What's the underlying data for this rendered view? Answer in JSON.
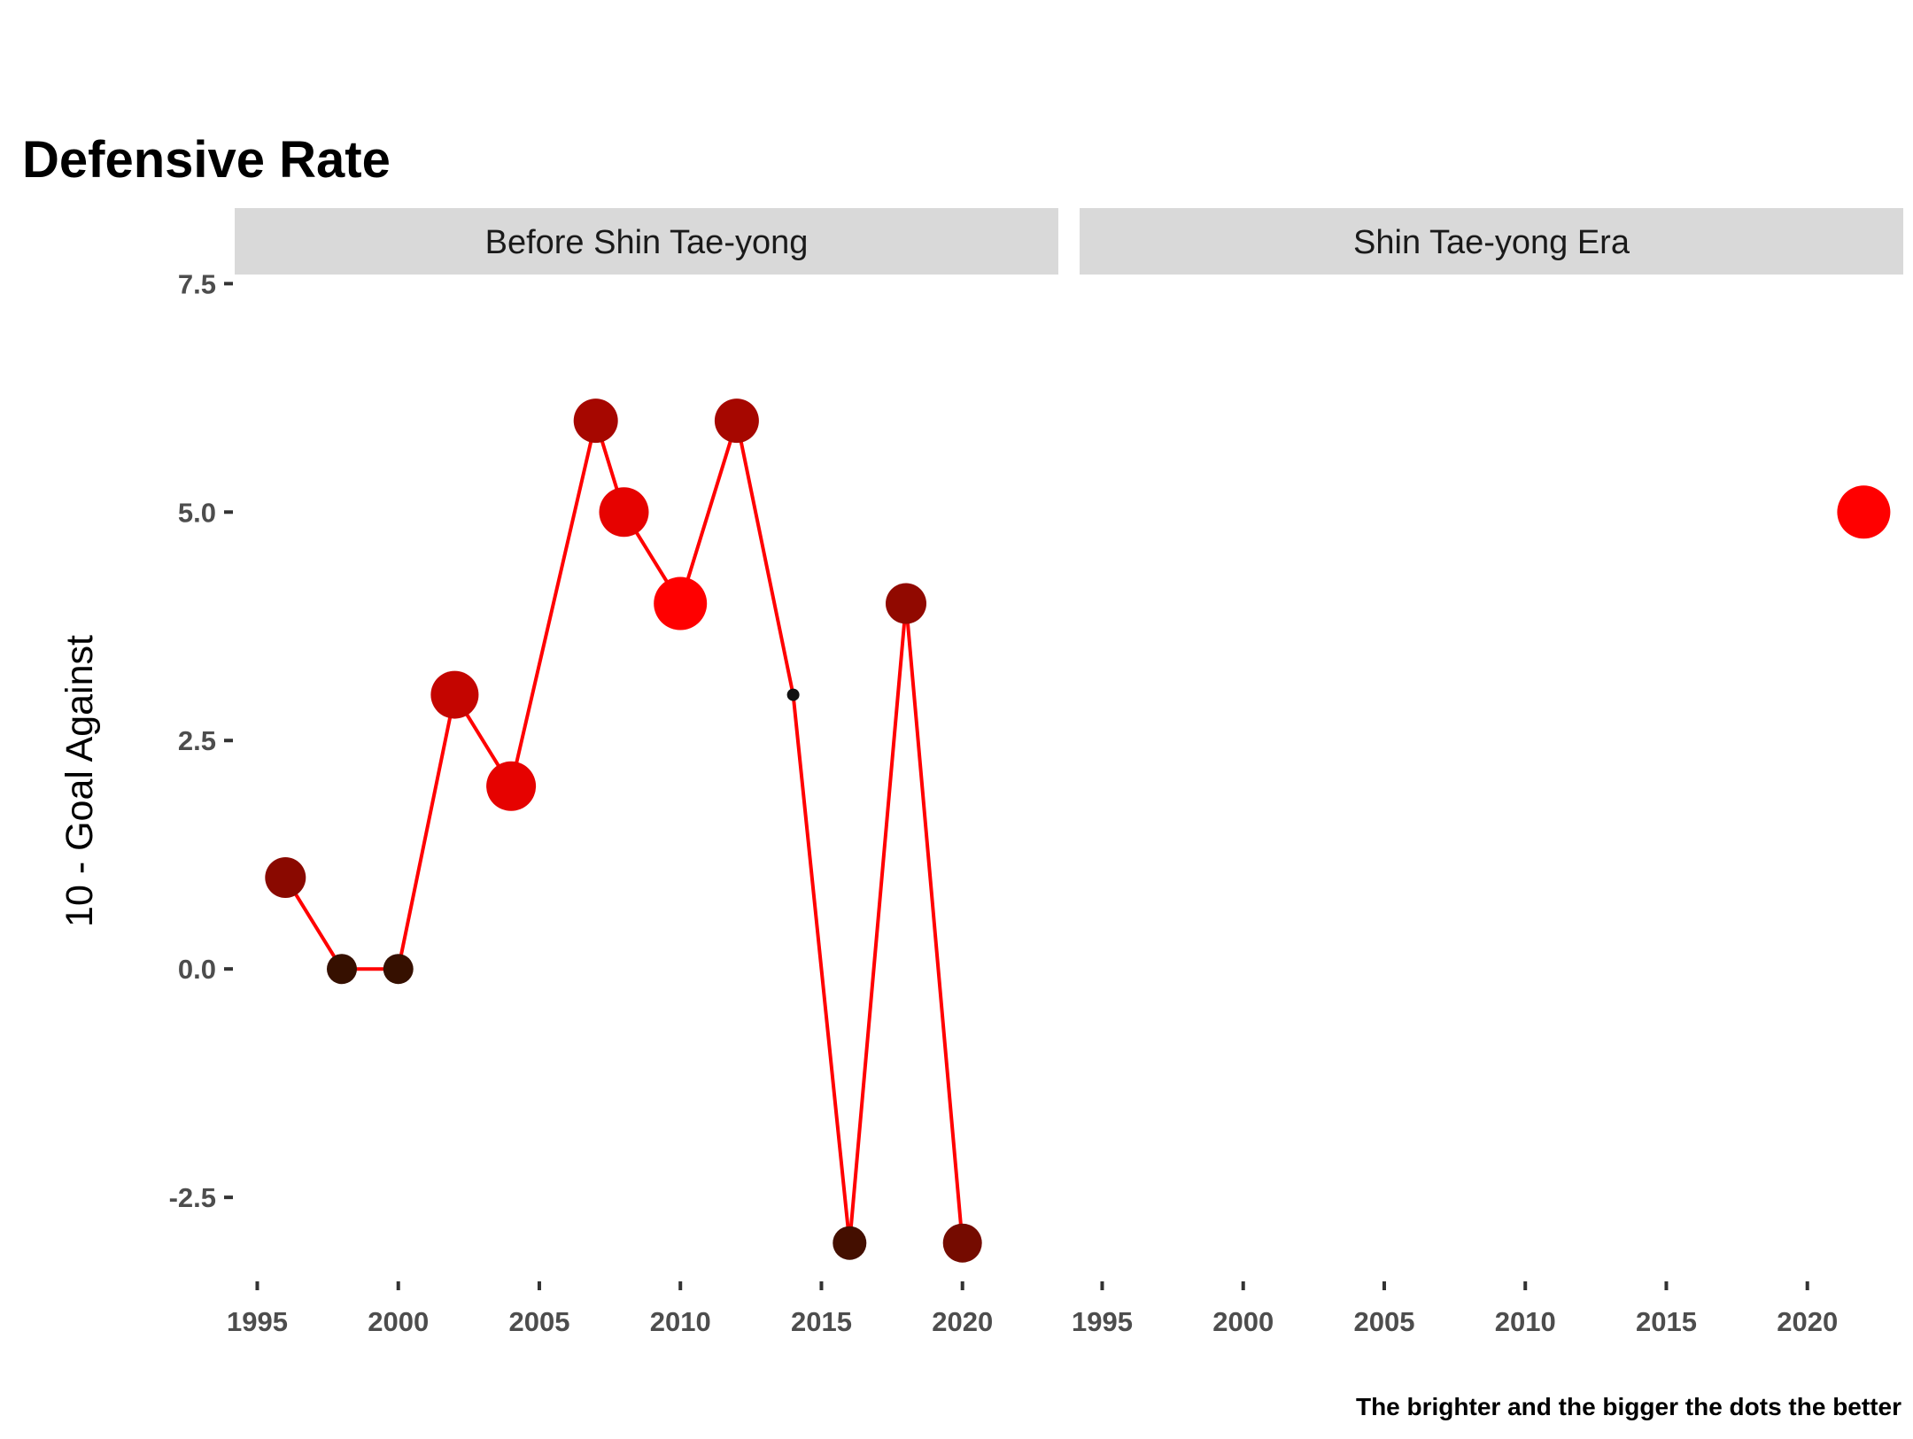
{
  "chart_data": {
    "type": "line",
    "title": "Defensive Rate",
    "ylabel": "10 - Goal Against",
    "xlabel": "",
    "caption": "The brighter and the bigger the dots the better",
    "xlim": [
      1994.2,
      2023.4
    ],
    "ylim": [
      -3.4,
      7.6
    ],
    "x_ticks": [
      1995,
      2000,
      2005,
      2010,
      2015,
      2020
    ],
    "x_tick_labels": [
      "1995",
      "2000",
      "2005",
      "2010",
      "2015",
      "2020"
    ],
    "y_ticks": [
      -2.5,
      0,
      2.5,
      5,
      7.5
    ],
    "y_tick_labels": [
      "-2.5",
      "0.0",
      "2.5",
      "5.0",
      "7.5"
    ],
    "line_color": "#ff0000",
    "color_scale": {
      "low": "#2b1100",
      "high": "#ff0000"
    },
    "grid": false,
    "panels": [
      {
        "label": "Before Shin Tae-yong",
        "points": [
          {
            "x": 1996,
            "y": 1
          },
          {
            "x": 1998,
            "y": 0
          },
          {
            "x": 2000,
            "y": 0
          },
          {
            "x": 2002,
            "y": 3
          },
          {
            "x": 2004,
            "y": 2
          },
          {
            "x": 2007,
            "y": 6
          },
          {
            "x": 2008,
            "y": 5
          },
          {
            "x": 2010,
            "y": 4
          },
          {
            "x": 2012,
            "y": 6
          },
          {
            "x": 2014,
            "y": 3
          },
          {
            "x": 2016,
            "y": -3
          },
          {
            "x": 2018,
            "y": 4
          },
          {
            "x": 2020,
            "y": -3
          }
        ]
      },
      {
        "label": "Shin Tae-yong Era",
        "points": [
          {
            "x": 2022,
            "y": 5
          }
        ]
      }
    ]
  }
}
